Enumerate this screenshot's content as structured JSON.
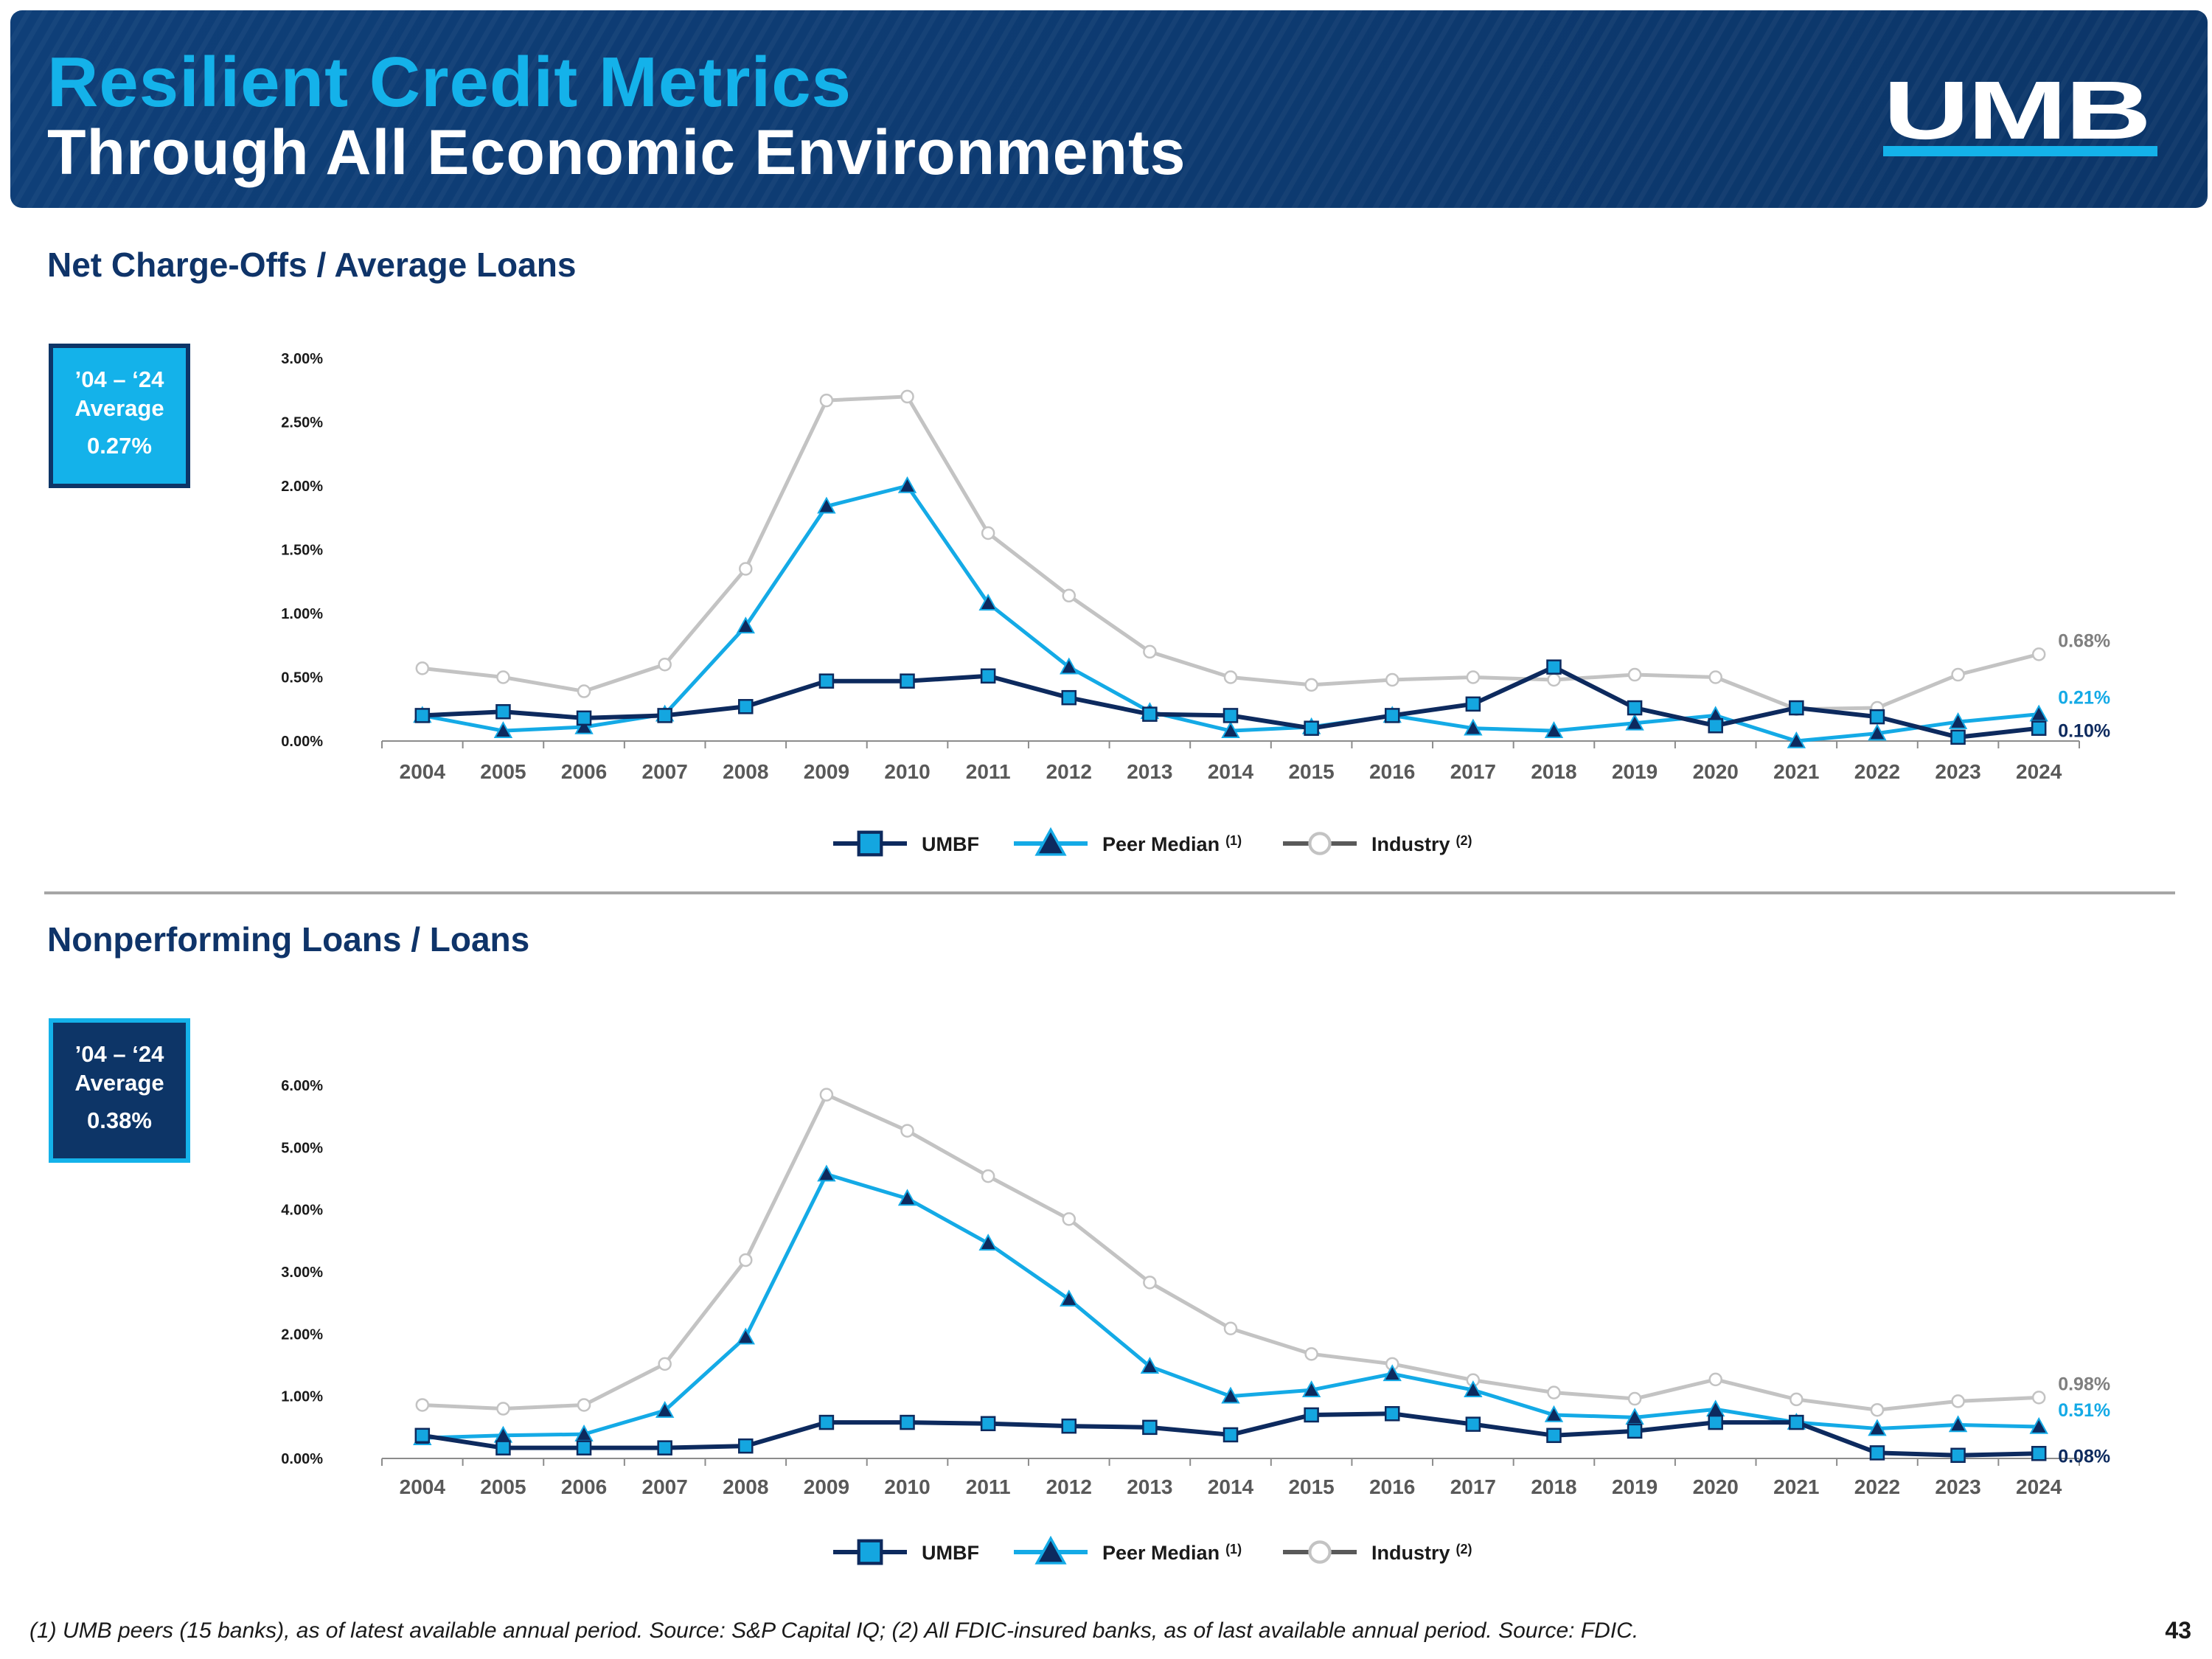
{
  "header": {
    "title_line1": "Resilient Credit Metrics",
    "title_line2": "Through All Economic Environments",
    "logo_text": "UMB"
  },
  "colors": {
    "umbf": "#0d2a5e",
    "umbf_fill": "#14a6e0",
    "peer": "#14aae6",
    "industry": "#c3c3c3",
    "banner": "#0f3f78",
    "accent": "#14b2ea"
  },
  "section1": {
    "title": "Net Charge-Offs / Average Loans",
    "avg_label_line1": "’04 – ‘24",
    "avg_label_line2": "Average",
    "avg_value": "0.27%"
  },
  "section2": {
    "title": "Nonperforming Loans / Loans",
    "avg_label_line1": "’04 – ‘24",
    "avg_label_line2": "Average",
    "avg_value": "0.38%"
  },
  "chart_data": [
    {
      "type": "line",
      "title": "Net Charge-Offs / Average Loans",
      "xlabel": "",
      "ylabel": "",
      "ylim": [
        0,
        3
      ],
      "y_ticks": [
        "0.00%",
        "0.50%",
        "1.00%",
        "1.50%",
        "2.00%",
        "2.50%",
        "3.00%"
      ],
      "categories": [
        "2004",
        "2005",
        "2006",
        "2007",
        "2008",
        "2009",
        "2010",
        "2011",
        "2012",
        "2013",
        "2014",
        "2015",
        "2016",
        "2017",
        "2018",
        "2019",
        "2020",
        "2021",
        "2022",
        "2023",
        "2024"
      ],
      "series": [
        {
          "name": "UMBF",
          "marker": "square",
          "values": [
            0.2,
            0.23,
            0.18,
            0.2,
            0.27,
            0.47,
            0.47,
            0.51,
            0.34,
            0.21,
            0.2,
            0.1,
            0.2,
            0.29,
            0.58,
            0.26,
            0.12,
            0.26,
            0.19,
            0.03,
            0.1
          ]
        },
        {
          "name": "Peer Median",
          "marker": "triangle",
          "values": [
            0.2,
            0.08,
            0.11,
            0.21,
            0.9,
            1.84,
            2.0,
            1.08,
            0.58,
            0.23,
            0.08,
            0.11,
            0.2,
            0.1,
            0.08,
            0.14,
            0.2,
            0.0,
            0.06,
            0.15,
            0.21
          ]
        },
        {
          "name": "Industry",
          "marker": "circle",
          "values": [
            0.57,
            0.5,
            0.39,
            0.6,
            1.35,
            2.67,
            2.7,
            1.63,
            1.14,
            0.7,
            0.5,
            0.44,
            0.48,
            0.5,
            0.48,
            0.52,
            0.5,
            0.25,
            0.26,
            0.52,
            0.68
          ]
        }
      ],
      "end_labels": {
        "industry": "0.68%",
        "peer": "0.21%",
        "umbf": "0.10%"
      },
      "legend": [
        {
          "name": "UMBF",
          "sup": ""
        },
        {
          "name": "Peer Median",
          "sup": "(1)"
        },
        {
          "name": "Industry",
          "sup": "(2)"
        }
      ]
    },
    {
      "type": "line",
      "title": "Nonperforming Loans / Loans",
      "xlabel": "",
      "ylabel": "",
      "ylim": [
        0,
        6
      ],
      "y_ticks": [
        "0.00%",
        "1.00%",
        "2.00%",
        "3.00%",
        "4.00%",
        "5.00%",
        "6.00%"
      ],
      "categories": [
        "2004",
        "2005",
        "2006",
        "2007",
        "2008",
        "2009",
        "2010",
        "2011",
        "2012",
        "2013",
        "2014",
        "2015",
        "2016",
        "2017",
        "2018",
        "2019",
        "2020",
        "2021",
        "2022",
        "2023",
        "2024"
      ],
      "series": [
        {
          "name": "UMBF",
          "marker": "square",
          "values": [
            0.37,
            0.17,
            0.17,
            0.17,
            0.2,
            0.58,
            0.58,
            0.56,
            0.52,
            0.5,
            0.38,
            0.7,
            0.72,
            0.55,
            0.37,
            0.44,
            0.58,
            0.58,
            0.09,
            0.05,
            0.08
          ]
        },
        {
          "name": "Peer Median",
          "marker": "triangle",
          "values": [
            0.33,
            0.37,
            0.39,
            0.77,
            1.95,
            4.57,
            4.18,
            3.46,
            2.56,
            1.48,
            1.0,
            1.1,
            1.36,
            1.1,
            0.7,
            0.66,
            0.79,
            0.58,
            0.48,
            0.54,
            0.51
          ]
        },
        {
          "name": "Industry",
          "marker": "circle",
          "values": [
            0.86,
            0.8,
            0.86,
            1.52,
            3.19,
            5.85,
            5.27,
            4.54,
            3.85,
            2.83,
            2.09,
            1.68,
            1.52,
            1.26,
            1.06,
            0.96,
            1.27,
            0.95,
            0.78,
            0.92,
            0.98
          ]
        }
      ],
      "end_labels": {
        "industry": "0.98%",
        "peer": "0.51%",
        "umbf": "0.08%"
      },
      "legend": [
        {
          "name": "UMBF",
          "sup": ""
        },
        {
          "name": "Peer Median",
          "sup": "(1)"
        },
        {
          "name": "Industry",
          "sup": "(2)"
        }
      ]
    }
  ],
  "footnote": "(1) UMB peers (15 banks), as of latest available annual period. Source: S&P Capital IQ; (2) All FDIC-insured banks, as of last available annual period. Source: FDIC.",
  "page_number": "43"
}
